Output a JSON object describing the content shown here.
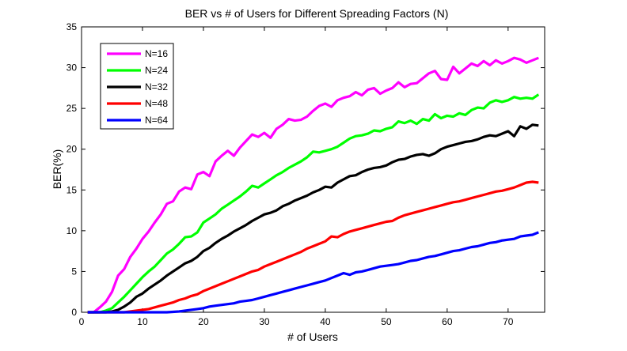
{
  "chart_data": {
    "type": "line",
    "title": "BER vs # of Users for Different Spreading Factors (N)",
    "xlabel": "# of Users",
    "ylabel": "BER(%)",
    "xlim": [
      0,
      76
    ],
    "ylim": [
      0,
      35
    ],
    "xticks": [
      0,
      10,
      20,
      30,
      40,
      50,
      60,
      70
    ],
    "yticks": [
      0,
      5,
      10,
      15,
      20,
      25,
      30,
      35
    ],
    "grid": false,
    "legend_position": "top-left",
    "x": [
      1,
      2,
      3,
      4,
      5,
      6,
      7,
      8,
      9,
      10,
      11,
      12,
      13,
      14,
      15,
      16,
      17,
      18,
      19,
      20,
      21,
      22,
      23,
      24,
      25,
      26,
      27,
      28,
      29,
      30,
      31,
      32,
      33,
      34,
      35,
      36,
      37,
      38,
      39,
      40,
      41,
      42,
      43,
      44,
      45,
      46,
      47,
      48,
      49,
      50,
      51,
      52,
      53,
      54,
      55,
      56,
      57,
      58,
      59,
      60,
      61,
      62,
      63,
      64,
      65,
      66,
      67,
      68,
      69,
      70,
      71,
      72,
      73,
      74,
      75
    ],
    "series": [
      {
        "name": "N=16",
        "color": "#ff00ff",
        "values": [
          0,
          0,
          0.6,
          1.3,
          2.5,
          4.5,
          5.3,
          6.8,
          7.8,
          9.0,
          9.9,
          11.0,
          12.0,
          13.3,
          13.6,
          14.8,
          15.3,
          15.1,
          16.9,
          17.2,
          16.7,
          18.5,
          19.2,
          19.8,
          19.2,
          20.2,
          21.0,
          21.8,
          21.5,
          22.0,
          21.4,
          22.5,
          23.0,
          23.7,
          23.5,
          23.6,
          24.0,
          24.7,
          25.3,
          25.6,
          25.2,
          26.0,
          26.3,
          26.5,
          27.0,
          26.6,
          27.3,
          27.5,
          26.8,
          27.2,
          27.5,
          28.2,
          27.6,
          28.0,
          28.1,
          28.7,
          29.3,
          29.6,
          28.6,
          28.5,
          30.1,
          29.3,
          29.9,
          30.5,
          30.2,
          30.8,
          30.3,
          30.9,
          30.5,
          30.8,
          31.2,
          31.0,
          30.6,
          30.9,
          31.2
        ]
      },
      {
        "name": "N=24",
        "color": "#00ff00",
        "values": [
          0,
          0,
          0,
          0.2,
          0.5,
          1.2,
          1.9,
          2.7,
          3.5,
          4.3,
          5.0,
          5.6,
          6.4,
          7.2,
          7.7,
          8.4,
          9.2,
          9.3,
          9.8,
          11.0,
          11.5,
          12.0,
          12.7,
          13.2,
          13.7,
          14.2,
          14.8,
          15.5,
          15.3,
          15.8,
          16.3,
          16.8,
          17.2,
          17.7,
          18.1,
          18.5,
          19.0,
          19.7,
          19.6,
          19.8,
          20.0,
          20.3,
          20.8,
          21.3,
          21.6,
          21.7,
          21.9,
          22.3,
          22.2,
          22.5,
          22.7,
          23.4,
          23.2,
          23.5,
          23.1,
          23.7,
          23.5,
          24.3,
          23.8,
          24.1,
          24.0,
          24.4,
          24.2,
          24.8,
          25.1,
          25.0,
          25.7,
          26.0,
          25.8,
          26.0,
          26.4,
          26.2,
          26.3,
          26.2,
          26.7
        ]
      },
      {
        "name": "N=32",
        "color": "#000000",
        "values": [
          0,
          0,
          0,
          0,
          0.1,
          0.3,
          0.7,
          1.2,
          1.9,
          2.3,
          2.9,
          3.4,
          3.9,
          4.5,
          5.0,
          5.5,
          6.0,
          6.3,
          6.8,
          7.5,
          7.9,
          8.5,
          9.0,
          9.4,
          9.9,
          10.3,
          10.7,
          11.2,
          11.6,
          12.0,
          12.2,
          12.5,
          13.0,
          13.3,
          13.7,
          14.0,
          14.3,
          14.7,
          15.0,
          15.4,
          15.3,
          15.9,
          16.3,
          16.7,
          16.8,
          17.2,
          17.5,
          17.7,
          17.8,
          18.0,
          18.4,
          18.7,
          18.8,
          19.1,
          19.3,
          19.4,
          19.2,
          19.5,
          20.0,
          20.3,
          20.5,
          20.7,
          20.9,
          21.0,
          21.2,
          21.5,
          21.7,
          21.6,
          21.9,
          22.2,
          21.6,
          22.8,
          22.5,
          23.0,
          22.9
        ]
      },
      {
        "name": "N=48",
        "color": "#ff0000",
        "values": [
          0,
          0,
          0,
          0,
          0,
          0,
          0,
          0.1,
          0.2,
          0.3,
          0.4,
          0.6,
          0.8,
          1.0,
          1.2,
          1.5,
          1.7,
          2.0,
          2.2,
          2.6,
          2.9,
          3.2,
          3.5,
          3.8,
          4.1,
          4.4,
          4.7,
          5.0,
          5.2,
          5.6,
          5.9,
          6.2,
          6.5,
          6.8,
          7.1,
          7.4,
          7.8,
          8.1,
          8.4,
          8.7,
          9.3,
          9.2,
          9.6,
          9.9,
          10.1,
          10.3,
          10.5,
          10.7,
          10.9,
          11.1,
          11.2,
          11.6,
          11.9,
          12.1,
          12.3,
          12.5,
          12.7,
          12.9,
          13.1,
          13.3,
          13.5,
          13.6,
          13.8,
          14.0,
          14.2,
          14.4,
          14.6,
          14.8,
          14.9,
          15.1,
          15.3,
          15.6,
          15.9,
          16.0,
          15.9
        ]
      },
      {
        "name": "N=64",
        "color": "#0000ff",
        "values": [
          0,
          0,
          0,
          0,
          0,
          0,
          0,
          0,
          0,
          0,
          0,
          0,
          0,
          0,
          0.05,
          0.1,
          0.2,
          0.3,
          0.4,
          0.5,
          0.7,
          0.8,
          0.9,
          1.0,
          1.1,
          1.3,
          1.4,
          1.5,
          1.7,
          1.9,
          2.1,
          2.3,
          2.5,
          2.7,
          2.9,
          3.1,
          3.3,
          3.5,
          3.7,
          3.9,
          4.2,
          4.5,
          4.8,
          4.6,
          4.9,
          5.0,
          5.2,
          5.4,
          5.6,
          5.7,
          5.8,
          5.9,
          6.1,
          6.3,
          6.4,
          6.6,
          6.8,
          6.9,
          7.1,
          7.3,
          7.5,
          7.6,
          7.8,
          8.0,
          8.1,
          8.3,
          8.5,
          8.6,
          8.8,
          8.9,
          9.0,
          9.3,
          9.4,
          9.5,
          9.8
        ]
      }
    ]
  }
}
